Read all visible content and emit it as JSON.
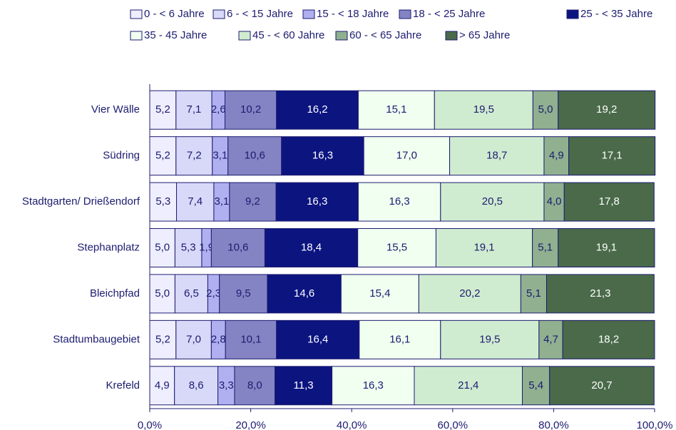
{
  "chart_data": {
    "type": "stacked_bar_horizontal",
    "categories": [
      "Vier Wälle",
      "Südring",
      "Stadtgarten/ Drießendorf",
      "Stephanplatz",
      "Bleichpfad",
      "Stadtumbaugebiet",
      "Krefeld"
    ],
    "series": [
      {
        "name": "0 - < 6 Jahre",
        "color": "#eeeeff",
        "values": [
          5.2,
          5.2,
          5.3,
          5.0,
          5.0,
          5.2,
          4.9
        ],
        "value_labels": [
          "5,2",
          "5,2",
          "5,3",
          "5,0",
          "5,0",
          "5,2",
          "4,9"
        ]
      },
      {
        "name": "6 - < 15 Jahre",
        "color": "#d8d8f8",
        "values": [
          7.1,
          7.2,
          7.4,
          5.3,
          6.5,
          7.0,
          8.6
        ],
        "value_labels": [
          "7,1",
          "7,2",
          "7,4",
          "5,3",
          "6,5",
          "7,0",
          "8,6"
        ]
      },
      {
        "name": "15 - < 18 Jahre",
        "color": "#b0b0f0",
        "values": [
          2.6,
          3.1,
          3.1,
          1.9,
          2.3,
          2.8,
          3.3
        ],
        "value_labels": [
          "2,6",
          "3,1",
          "3,1",
          "1,9",
          "2,3",
          "2,8",
          "3,3"
        ]
      },
      {
        "name": "18 - < 25 Jahre",
        "color": "#8484c4",
        "values": [
          10.2,
          10.6,
          9.2,
          10.6,
          9.5,
          10.1,
          8.0
        ],
        "value_labels": [
          "10,2",
          "10,6",
          "9,2",
          "10,6",
          "9,5",
          "10,1",
          "8,0"
        ]
      },
      {
        "name": "25 - < 35 Jahre",
        "color": "#0c1480",
        "values": [
          16.2,
          16.3,
          16.3,
          18.4,
          14.6,
          16.4,
          11.3
        ],
        "value_labels": [
          "16,2",
          "16,3",
          "16,3",
          "18,4",
          "14,6",
          "16,4",
          "11,3"
        ]
      },
      {
        "name": "35 - 45 Jahre",
        "color": "#f0fff0",
        "values": [
          15.1,
          17.0,
          16.3,
          15.5,
          15.4,
          16.1,
          16.3
        ],
        "value_labels": [
          "15,1",
          "17,0",
          "16,3",
          "15,5",
          "15,4",
          "16,1",
          "16,3"
        ]
      },
      {
        "name": "45 - < 60 Jahre",
        "color": "#d0ecd0",
        "values": [
          19.5,
          18.7,
          20.5,
          19.1,
          20.2,
          19.5,
          21.4
        ],
        "value_labels": [
          "19,5",
          "18,7",
          "20,5",
          "19,1",
          "20,2",
          "19,5",
          "21,4"
        ]
      },
      {
        "name": "60 - < 65 Jahre",
        "color": "#90b090",
        "values": [
          5.0,
          4.9,
          4.0,
          5.1,
          5.1,
          4.7,
          5.4
        ],
        "value_labels": [
          "5,0",
          "4,9",
          "4,0",
          "5,1",
          "5,1",
          "4,7",
          "5,4"
        ]
      },
      {
        "name": "> 65 Jahre",
        "color": "#4a6a4a",
        "values": [
          19.2,
          17.1,
          17.8,
          19.1,
          21.3,
          18.2,
          20.7
        ],
        "value_labels": [
          "19,2",
          "17,1",
          "17,8",
          "19,1",
          "21,3",
          "18,2",
          "20,7"
        ]
      }
    ],
    "xlim": [
      0,
      100
    ],
    "xticks": [
      {
        "value": 0,
        "label": "0,0%"
      },
      {
        "value": 20,
        "label": "20,0%"
      },
      {
        "value": 40,
        "label": "40,0%"
      },
      {
        "value": 60,
        "label": "60,0%"
      },
      {
        "value": 80,
        "label": "80,0%"
      },
      {
        "value": 100,
        "label": "100,0%"
      }
    ]
  }
}
